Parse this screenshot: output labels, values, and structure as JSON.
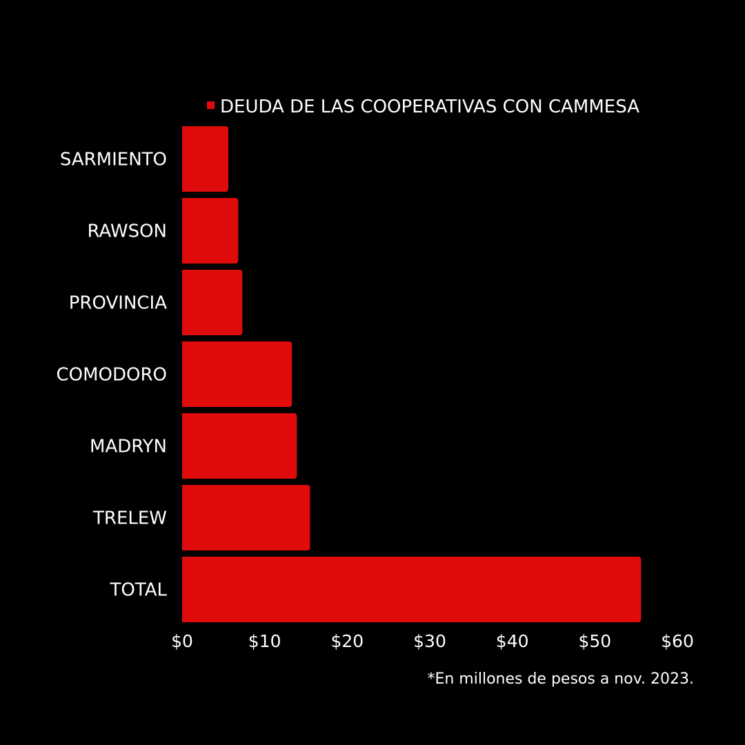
{
  "chart_data": {
    "type": "bar",
    "orientation": "horizontal",
    "categories": [
      "SARMIENTO",
      "RAWSON",
      "PROVINCIA",
      "COMODORO",
      "MADRYN",
      "TRELEW",
      "TOTAL"
    ],
    "series": [
      {
        "name": "DEUDA DE LAS COOPERATIVAS CON CAMMESA",
        "values": [
          5.6,
          6.8,
          7.3,
          13.3,
          13.9,
          15.5,
          55.6
        ],
        "color": "#e00b0b"
      }
    ],
    "xlim": [
      0,
      60
    ],
    "xticks": [
      "$0",
      "$10",
      "$20",
      "$30",
      "$40",
      "$50",
      "$60"
    ],
    "legend_position": "top",
    "grid": false,
    "background": "#000000",
    "text_color": "#ffffff"
  },
  "footnote": "*En millones de pesos a nov. 2023."
}
